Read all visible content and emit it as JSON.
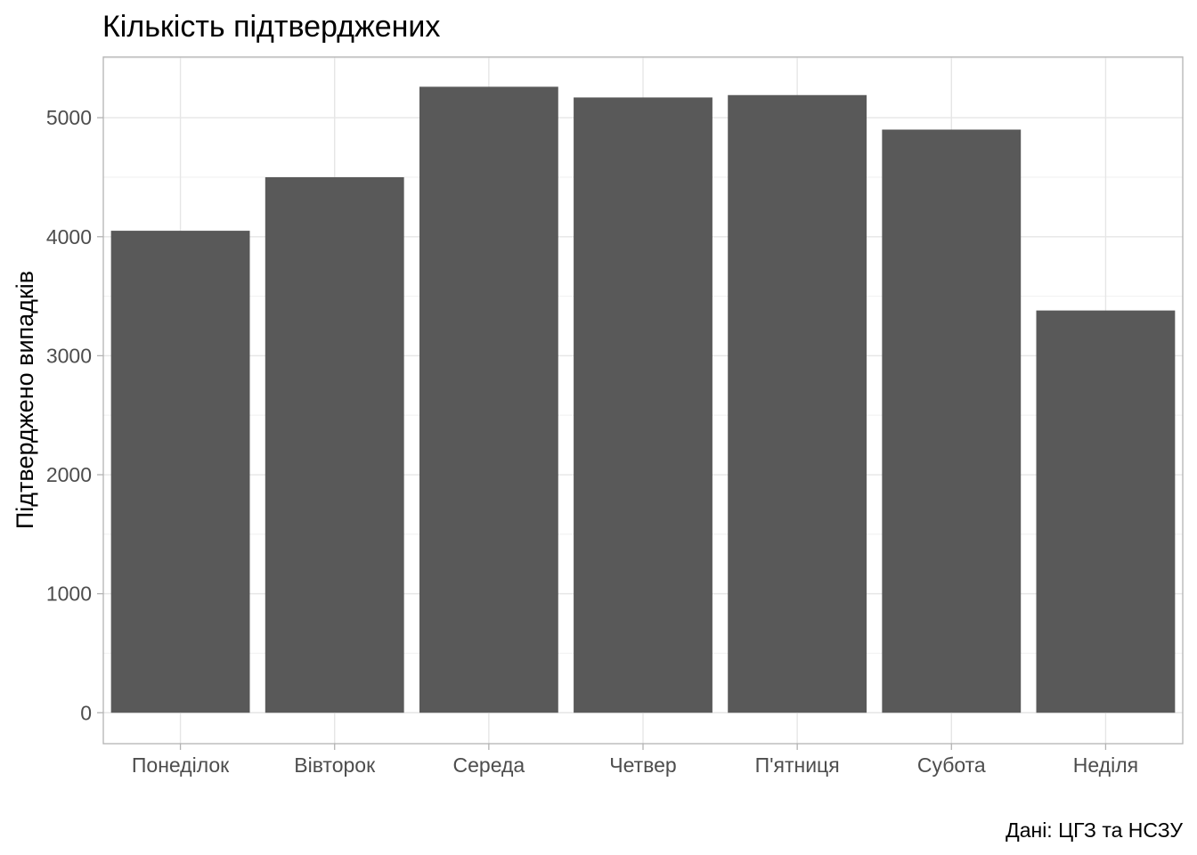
{
  "chart_data": {
    "type": "bar",
    "title": "Кількість підтверджених",
    "xlabel": "",
    "ylabel": "Підтверджено випадків",
    "caption": "Дані: ЦГЗ та НСЗУ",
    "categories": [
      "Понеділок",
      "Вівторок",
      "Середа",
      "Четвер",
      "П'ятниця",
      "Субота",
      "Неділя"
    ],
    "values": [
      4050,
      4500,
      5260,
      5170,
      5190,
      4900,
      3380
    ],
    "ylim": [
      -260,
      5510
    ],
    "yticks": [
      0,
      1000,
      2000,
      3000,
      4000,
      5000
    ],
    "ytick_labels": [
      "0",
      "1000",
      "2000",
      "3000",
      "4000",
      "5000"
    ],
    "grid": true,
    "colors": {
      "bar": "#595959",
      "grid_major": "#e6e6e6",
      "grid_minor": "#f2f2f2",
      "panel_border": "#b3b3b3",
      "tick_mark": "#b3b3b3",
      "tick_label": "#4d4d4d"
    }
  }
}
